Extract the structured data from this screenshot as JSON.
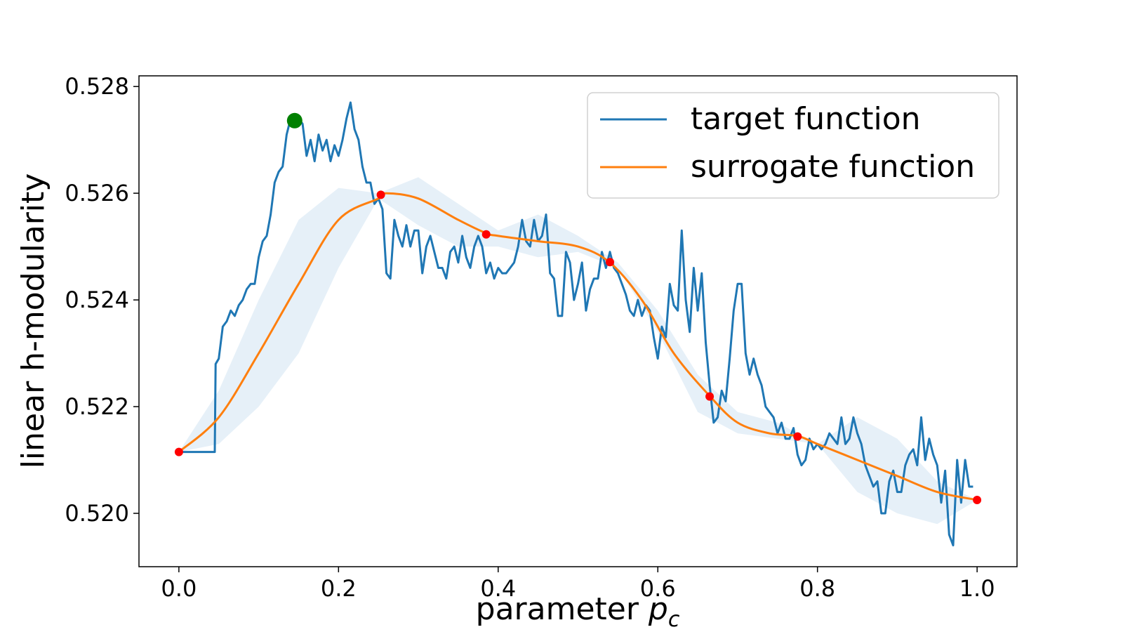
{
  "chart_data": {
    "type": "line",
    "title": "",
    "xlabel": "parameter ",
    "xlabel_symbol": "p",
    "xlabel_subscript": "c",
    "ylabel": "linear h-modularity",
    "xlim": [
      -0.05,
      1.05
    ],
    "ylim": [
      0.519,
      0.5282
    ],
    "x_ticks": [
      0.0,
      0.2,
      0.4,
      0.6,
      0.8,
      1.0
    ],
    "x_tick_labels": [
      "0.0",
      "0.2",
      "0.4",
      "0.6",
      "0.8",
      "1.0"
    ],
    "y_ticks": [
      0.52,
      0.522,
      0.524,
      0.526,
      0.528
    ],
    "y_tick_labels": [
      "0.520",
      "0.522",
      "0.524",
      "0.526",
      "0.528"
    ],
    "grid": false,
    "legend": {
      "placement": "top-right",
      "entries": [
        "target function",
        "surrogate function"
      ]
    },
    "colors": {
      "target": "#1f77b4",
      "surrogate": "#ff7f0e",
      "band": "#dce9f5",
      "samples": "#ff0000",
      "best": "#008000"
    },
    "series": [
      {
        "name": "target function",
        "x": [
          0.0,
          0.045,
          0.046,
          0.05,
          0.055,
          0.06,
          0.065,
          0.07,
          0.075,
          0.08,
          0.085,
          0.09,
          0.095,
          0.1,
          0.105,
          0.11,
          0.115,
          0.12,
          0.125,
          0.13,
          0.135,
          0.14,
          0.145,
          0.15,
          0.155,
          0.16,
          0.165,
          0.17,
          0.175,
          0.18,
          0.185,
          0.19,
          0.195,
          0.2,
          0.205,
          0.21,
          0.215,
          0.22,
          0.225,
          0.23,
          0.235,
          0.24,
          0.245,
          0.25,
          0.255,
          0.26,
          0.265,
          0.27,
          0.275,
          0.28,
          0.285,
          0.29,
          0.295,
          0.3,
          0.305,
          0.31,
          0.315,
          0.32,
          0.325,
          0.33,
          0.335,
          0.34,
          0.345,
          0.35,
          0.355,
          0.36,
          0.365,
          0.37,
          0.375,
          0.38,
          0.385,
          0.39,
          0.395,
          0.4,
          0.405,
          0.41,
          0.415,
          0.42,
          0.425,
          0.43,
          0.435,
          0.44,
          0.445,
          0.45,
          0.455,
          0.46,
          0.465,
          0.47,
          0.475,
          0.48,
          0.485,
          0.49,
          0.495,
          0.5,
          0.505,
          0.51,
          0.515,
          0.52,
          0.525,
          0.53,
          0.535,
          0.54,
          0.545,
          0.55,
          0.555,
          0.56,
          0.565,
          0.57,
          0.575,
          0.58,
          0.585,
          0.59,
          0.595,
          0.6,
          0.605,
          0.61,
          0.615,
          0.62,
          0.625,
          0.63,
          0.635,
          0.64,
          0.645,
          0.65,
          0.655,
          0.66,
          0.665,
          0.67,
          0.675,
          0.68,
          0.685,
          0.69,
          0.695,
          0.7,
          0.705,
          0.71,
          0.715,
          0.72,
          0.725,
          0.73,
          0.735,
          0.74,
          0.745,
          0.75,
          0.755,
          0.76,
          0.765,
          0.77,
          0.775,
          0.78,
          0.785,
          0.79,
          0.795,
          0.8,
          0.805,
          0.81,
          0.815,
          0.82,
          0.825,
          0.83,
          0.835,
          0.84,
          0.845,
          0.85,
          0.855,
          0.86,
          0.865,
          0.87,
          0.875,
          0.88,
          0.885,
          0.89,
          0.895,
          0.9,
          0.905,
          0.91,
          0.915,
          0.92,
          0.925,
          0.93,
          0.935,
          0.94,
          0.945,
          0.95,
          0.955,
          0.96,
          0.965,
          0.97,
          0.975,
          0.98,
          0.985,
          0.99,
          0.995
        ],
        "y": [
          0.52115,
          0.52115,
          0.5228,
          0.5229,
          0.5235,
          0.5236,
          0.5238,
          0.5237,
          0.5239,
          0.524,
          0.5242,
          0.5243,
          0.5243,
          0.5248,
          0.5251,
          0.5252,
          0.5256,
          0.5262,
          0.5264,
          0.5265,
          0.5271,
          0.5274,
          0.5273,
          0.5274,
          0.5273,
          0.5267,
          0.527,
          0.5266,
          0.5271,
          0.5268,
          0.527,
          0.5266,
          0.5269,
          0.5267,
          0.527,
          0.5274,
          0.5277,
          0.5272,
          0.527,
          0.5265,
          0.5262,
          0.5262,
          0.5258,
          0.5259,
          0.5257,
          0.5245,
          0.5244,
          0.5255,
          0.5252,
          0.525,
          0.5254,
          0.525,
          0.5253,
          0.5253,
          0.5245,
          0.525,
          0.5252,
          0.5249,
          0.5246,
          0.5246,
          0.5244,
          0.5249,
          0.525,
          0.5247,
          0.5252,
          0.5248,
          0.5246,
          0.525,
          0.5252,
          0.525,
          0.5245,
          0.5247,
          0.5244,
          0.5246,
          0.5245,
          0.5245,
          0.5246,
          0.5247,
          0.525,
          0.5255,
          0.5251,
          0.525,
          0.5255,
          0.5251,
          0.5252,
          0.5256,
          0.5245,
          0.5244,
          0.5237,
          0.5237,
          0.5249,
          0.5247,
          0.524,
          0.5243,
          0.5247,
          0.5238,
          0.5242,
          0.5244,
          0.5244,
          0.5249,
          0.5246,
          0.5249,
          0.5246,
          0.5245,
          0.5243,
          0.5241,
          0.5238,
          0.5237,
          0.524,
          0.5237,
          0.5239,
          0.5238,
          0.5233,
          0.5229,
          0.5235,
          0.5233,
          0.5243,
          0.5239,
          0.5238,
          0.5253,
          0.524,
          0.5234,
          0.5246,
          0.5238,
          0.5245,
          0.5232,
          0.5224,
          0.5217,
          0.5218,
          0.5223,
          0.5221,
          0.5229,
          0.5238,
          0.5243,
          0.5243,
          0.523,
          0.5226,
          0.5229,
          0.5226,
          0.5224,
          0.522,
          0.5219,
          0.5218,
          0.5215,
          0.5217,
          0.5214,
          0.5214,
          0.5216,
          0.5211,
          0.5209,
          0.521,
          0.5214,
          0.5212,
          0.5213,
          0.5212,
          0.5213,
          0.5215,
          0.5214,
          0.5213,
          0.5218,
          0.5213,
          0.5214,
          0.5218,
          0.5215,
          0.5213,
          0.5209,
          0.5207,
          0.5205,
          0.5206,
          0.52,
          0.52,
          0.5206,
          0.5208,
          0.5204,
          0.5204,
          0.5209,
          0.5211,
          0.5212,
          0.5209,
          0.5218,
          0.521,
          0.5214,
          0.5211,
          0.5209,
          0.5202,
          0.5208,
          0.5196,
          0.5194,
          0.521,
          0.5202,
          0.521,
          0.5205,
          0.5205
        ]
      },
      {
        "name": "surrogate function",
        "x": [
          0.0,
          0.05,
          0.1,
          0.15,
          0.2,
          0.25,
          0.26,
          0.3,
          0.35,
          0.385,
          0.4,
          0.45,
          0.5,
          0.54,
          0.58,
          0.62,
          0.665,
          0.7,
          0.74,
          0.775,
          0.8,
          0.85,
          0.9,
          0.95,
          1.0
        ],
        "y": [
          0.52115,
          0.5218,
          0.523,
          0.5243,
          0.5255,
          0.5259,
          0.526,
          0.5259,
          0.5255,
          0.52525,
          0.5252,
          0.5251,
          0.525,
          0.5247,
          0.524,
          0.523,
          0.5222,
          0.5217,
          0.5215,
          0.52145,
          0.5213,
          0.521,
          0.5207,
          0.5204,
          0.52025
        ]
      }
    ],
    "confidence_band": {
      "x": [
        0.0,
        0.05,
        0.1,
        0.15,
        0.2,
        0.25,
        0.3,
        0.35,
        0.4,
        0.45,
        0.5,
        0.55,
        0.6,
        0.65,
        0.7,
        0.75,
        0.8,
        0.85,
        0.9,
        0.95,
        1.0
      ],
      "upper": [
        0.52115,
        0.5223,
        0.524,
        0.5255,
        0.5261,
        0.526,
        0.5263,
        0.5258,
        0.5253,
        0.5256,
        0.5252,
        0.5247,
        0.5238,
        0.5226,
        0.5219,
        0.5217,
        0.5213,
        0.5218,
        0.5214,
        0.5206,
        0.52025
      ],
      "lower": [
        0.52115,
        0.5213,
        0.522,
        0.523,
        0.5246,
        0.5259,
        0.5254,
        0.525,
        0.525,
        0.5248,
        0.5249,
        0.5246,
        0.5234,
        0.5219,
        0.5215,
        0.5214,
        0.5213,
        0.5204,
        0.52,
        0.5198,
        0.52025
      ]
    },
    "sample_points": {
      "x": [
        0.0,
        0.253,
        0.385,
        0.54,
        0.665,
        0.775,
        1.0
      ],
      "y": [
        0.52115,
        0.52597,
        0.52523,
        0.52471,
        0.52219,
        0.52144,
        0.52025
      ]
    },
    "best_point": {
      "x": 0.145,
      "y": 0.52736
    }
  }
}
